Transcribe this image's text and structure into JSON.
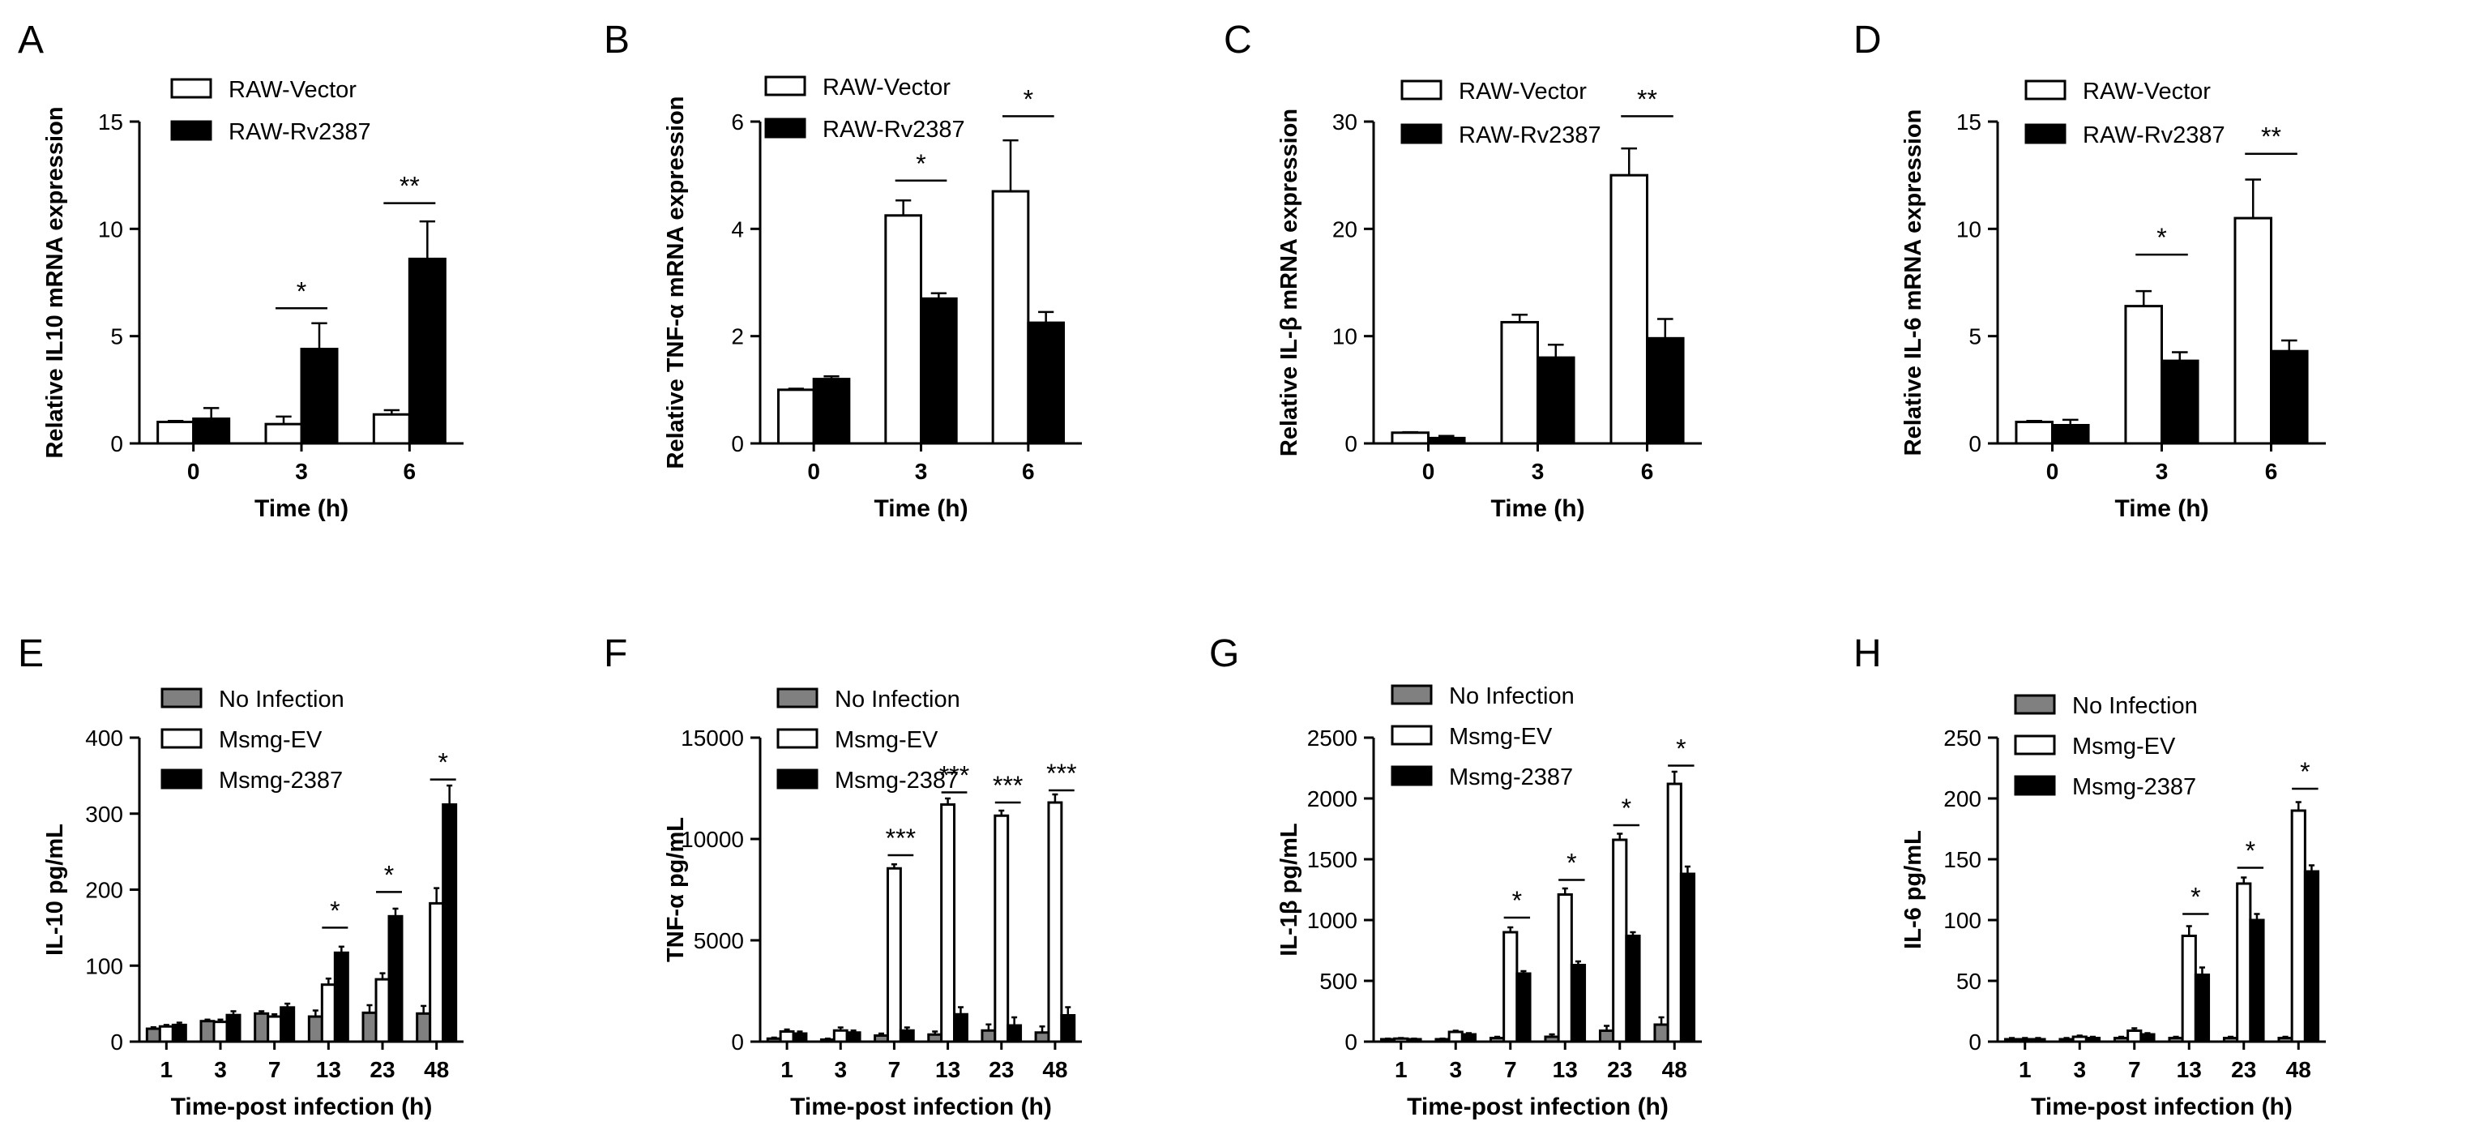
{
  "chart_data": [
    {
      "panel": "A",
      "type": "bar",
      "xlabel": "Time (h)",
      "ylabel": "Relative IL10 mRNA expression",
      "categories": [
        "0",
        "3",
        "6"
      ],
      "ylim": [
        0,
        15
      ],
      "yticks": [
        0,
        5,
        10,
        15
      ],
      "series": [
        {
          "name": "RAW-Vector",
          "fill": "#ffffff",
          "values": [
            1.0,
            0.9,
            1.35
          ],
          "errors": [
            0.05,
            0.35,
            0.2
          ]
        },
        {
          "name": "RAW-Rv2387",
          "fill": "#000000",
          "values": [
            1.15,
            4.4,
            8.6
          ],
          "errors": [
            0.5,
            1.2,
            1.75
          ]
        }
      ],
      "significance": [
        {
          "category": 1,
          "label": "*",
          "y": 6.3
        },
        {
          "category": 2,
          "label": "**",
          "y": 11.2
        }
      ]
    },
    {
      "panel": "B",
      "type": "bar",
      "xlabel": "Time (h)",
      "ylabel": "Relative TNF-α mRNA expression",
      "categories": [
        "0",
        "3",
        "6"
      ],
      "ylim": [
        0,
        6
      ],
      "yticks": [
        0,
        2,
        4,
        6
      ],
      "series": [
        {
          "name": "RAW-Vector",
          "fill": "#ffffff",
          "values": [
            1.0,
            4.25,
            4.7
          ],
          "errors": [
            0.02,
            0.28,
            0.95
          ]
        },
        {
          "name": "RAW-Rv2387",
          "fill": "#000000",
          "values": [
            1.2,
            2.7,
            2.25
          ],
          "errors": [
            0.05,
            0.1,
            0.2
          ]
        }
      ],
      "significance": [
        {
          "category": 1,
          "label": "*",
          "y": 4.9
        },
        {
          "category": 2,
          "label": "*",
          "y": 6.1
        }
      ]
    },
    {
      "panel": "C",
      "type": "bar",
      "xlabel": "Time (h)",
      "ylabel": "Relative IL-β mRNA expression",
      "categories": [
        "0",
        "3",
        "6"
      ],
      "ylim": [
        0,
        30
      ],
      "yticks": [
        0,
        10,
        20,
        30
      ],
      "series": [
        {
          "name": "RAW-Vector",
          "fill": "#ffffff",
          "values": [
            1.0,
            11.3,
            25.0
          ],
          "errors": [
            0.05,
            0.7,
            2.5
          ]
        },
        {
          "name": "RAW-Rv2387",
          "fill": "#000000",
          "values": [
            0.5,
            8.0,
            9.8
          ],
          "errors": [
            0.2,
            1.2,
            1.8
          ]
        }
      ],
      "significance": [
        {
          "category": 2,
          "label": "**",
          "y": 30.5
        }
      ]
    },
    {
      "panel": "D",
      "type": "bar",
      "xlabel": "Time (h)",
      "ylabel": "Relative IL-6 mRNA expression",
      "categories": [
        "0",
        "3",
        "6"
      ],
      "ylim": [
        0,
        15
      ],
      "yticks": [
        0,
        5,
        10,
        15
      ],
      "series": [
        {
          "name": "RAW-Vector",
          "fill": "#ffffff",
          "values": [
            1.0,
            6.4,
            10.5
          ],
          "errors": [
            0.05,
            0.7,
            1.8
          ]
        },
        {
          "name": "RAW-Rv2387",
          "fill": "#000000",
          "values": [
            0.85,
            3.85,
            4.3
          ],
          "errors": [
            0.25,
            0.4,
            0.5
          ]
        }
      ],
      "significance": [
        {
          "category": 1,
          "label": "*",
          "y": 8.8
        },
        {
          "category": 2,
          "label": "**",
          "y": 13.5
        }
      ]
    },
    {
      "panel": "E",
      "type": "bar",
      "xlabel": "Time-post infection (h)",
      "ylabel": "IL-10 pg/mL",
      "categories": [
        "1",
        "3",
        "7",
        "13",
        "23",
        "48"
      ],
      "ylim": [
        0,
        400
      ],
      "yticks": [
        0,
        100,
        200,
        300,
        400
      ],
      "series": [
        {
          "name": "No Infection",
          "fill": "#808080",
          "values": [
            17,
            27,
            37,
            33,
            38,
            37
          ],
          "errors": [
            2,
            2,
            3,
            8,
            10,
            10
          ]
        },
        {
          "name": "Msmg-EV",
          "fill": "#ffffff",
          "values": [
            20,
            26,
            33,
            75,
            82,
            182
          ],
          "errors": [
            2,
            3,
            3,
            8,
            8,
            20
          ]
        },
        {
          "name": "Msmg-2387",
          "fill": "#000000",
          "values": [
            22,
            35,
            45,
            117,
            165,
            312
          ],
          "errors": [
            3,
            5,
            5,
            8,
            10,
            25
          ]
        }
      ],
      "significance": [
        {
          "category": 3,
          "label": "*",
          "y": 150
        },
        {
          "category": 4,
          "label": "*",
          "y": 197
        },
        {
          "category": 5,
          "label": "*",
          "y": 345
        }
      ]
    },
    {
      "panel": "F",
      "type": "bar",
      "xlabel": "Time-post infection (h)",
      "ylabel": "TNF-α  pg/mL",
      "categories": [
        "1",
        "3",
        "7",
        "13",
        "23",
        "48"
      ],
      "ylim": [
        0,
        15000
      ],
      "yticks": [
        0,
        5000,
        10000,
        15000
      ],
      "series": [
        {
          "name": "No Infection",
          "fill": "#808080",
          "values": [
            150,
            100,
            300,
            350,
            550,
            450
          ],
          "errors": [
            50,
            50,
            100,
            150,
            300,
            300
          ]
        },
        {
          "name": "Msmg-EV",
          "fill": "#ffffff",
          "values": [
            500,
            550,
            8550,
            11700,
            11150,
            11800
          ],
          "errors": [
            100,
            150,
            200,
            300,
            250,
            400
          ]
        },
        {
          "name": "Msmg-2387",
          "fill": "#000000",
          "values": [
            400,
            450,
            550,
            1350,
            800,
            1300
          ],
          "errors": [
            100,
            100,
            150,
            350,
            400,
            400
          ]
        }
      ],
      "significance": [
        {
          "category": 2,
          "label": "***",
          "y": 9200
        },
        {
          "category": 3,
          "label": "***",
          "y": 12300
        },
        {
          "category": 4,
          "label": "***",
          "y": 11800
        },
        {
          "category": 5,
          "label": "***",
          "y": 12400
        }
      ]
    },
    {
      "panel": "G",
      "type": "bar",
      "xlabel": "Time-post infection (h)",
      "ylabel": "IL-1β pg/mL",
      "categories": [
        "1",
        "3",
        "7",
        "13",
        "23",
        "48"
      ],
      "ylim": [
        0,
        2500
      ],
      "yticks": [
        0,
        500,
        1000,
        1500,
        2000,
        2500
      ],
      "series": [
        {
          "name": "No Infection",
          "fill": "#808080",
          "values": [
            20,
            20,
            30,
            40,
            90,
            140
          ],
          "errors": [
            5,
            5,
            10,
            20,
            40,
            60
          ]
        },
        {
          "name": "Msmg-EV",
          "fill": "#ffffff",
          "values": [
            25,
            80,
            900,
            1210,
            1660,
            2120
          ],
          "errors": [
            5,
            10,
            40,
            50,
            50,
            100
          ]
        },
        {
          "name": "Msmg-2387",
          "fill": "#000000",
          "values": [
            20,
            60,
            560,
            630,
            870,
            1380
          ],
          "errors": [
            5,
            10,
            20,
            30,
            30,
            60
          ]
        }
      ],
      "significance": [
        {
          "category": 2,
          "label": "*",
          "y": 1020
        },
        {
          "category": 3,
          "label": "*",
          "y": 1330
        },
        {
          "category": 4,
          "label": "*",
          "y": 1780
        },
        {
          "category": 5,
          "label": "*",
          "y": 2270
        }
      ]
    },
    {
      "panel": "H",
      "type": "bar",
      "xlabel": "Time-post infection (h)",
      "ylabel": "IL-6 pg/mL",
      "categories": [
        "1",
        "3",
        "7",
        "13",
        "23",
        "48"
      ],
      "ylim": [
        0,
        250
      ],
      "yticks": [
        0,
        50,
        100,
        150,
        200,
        250
      ],
      "series": [
        {
          "name": "No Infection",
          "fill": "#808080",
          "values": [
            2,
            2,
            3,
            3,
            3,
            3
          ],
          "errors": [
            1,
            1,
            1,
            1,
            1,
            1
          ]
        },
        {
          "name": "Msmg-EV",
          "fill": "#ffffff",
          "values": [
            2,
            4,
            9,
            87,
            130,
            190
          ],
          "errors": [
            1,
            1,
            2,
            8,
            5,
            7
          ]
        },
        {
          "name": "Msmg-2387",
          "fill": "#000000",
          "values": [
            2,
            3,
            6,
            55,
            100,
            140
          ],
          "errors": [
            1,
            1,
            1,
            6,
            5,
            5
          ]
        }
      ],
      "significance": [
        {
          "category": 3,
          "label": "*",
          "y": 105
        },
        {
          "category": 4,
          "label": "*",
          "y": 143
        },
        {
          "category": 5,
          "label": "*",
          "y": 208
        }
      ]
    }
  ]
}
